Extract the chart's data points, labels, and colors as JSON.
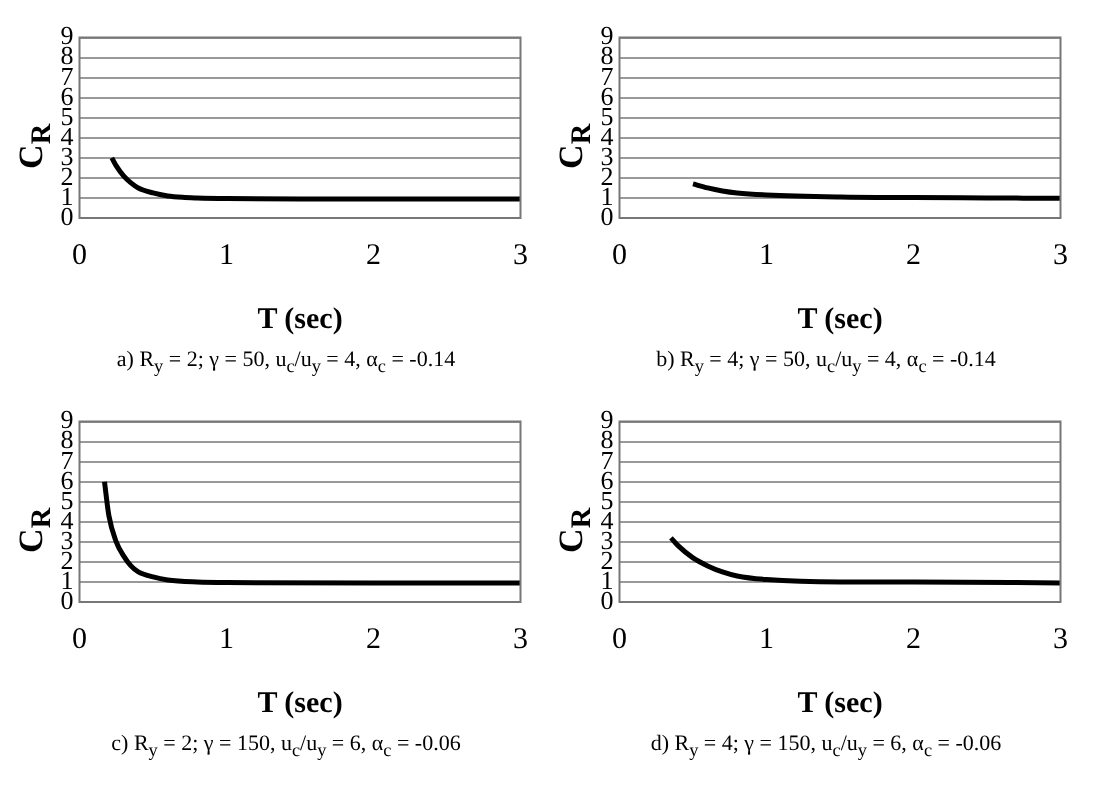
{
  "chart_data": [
    {
      "type": "line",
      "ylabel": "C$_{R}$",
      "xlabel": "T (sec)",
      "annotations": [
        "a) R$_{y}$ = 2; γ = 50, u$_{c}$/u$_{y}$ = 4, α$_{c}$ = -0.14"
      ],
      "x": [
        0.22,
        0.25,
        0.3,
        0.35,
        0.4,
        0.5,
        0.6,
        0.7,
        0.8,
        1,
        1.5,
        2,
        2.5,
        3
      ],
      "values": [
        3.0,
        2.6,
        2.1,
        1.75,
        1.5,
        1.25,
        1.1,
        1.03,
        1.0,
        0.97,
        0.95,
        0.95,
        0.95,
        0.95
      ],
      "color": "#000000",
      "xlim": [
        0,
        3
      ],
      "xticks": [
        0,
        1,
        2,
        3
      ],
      "ylim": [
        0,
        9
      ],
      "yticks": [
        0,
        1,
        2,
        3,
        4,
        5,
        6,
        7,
        8,
        9
      ],
      "grid": "y"
    },
    {
      "type": "line",
      "ylabel": "C$_{R}$",
      "xlabel": "T (sec)",
      "annotations": [
        "b) R$_{y}$ = 4; γ = 50, u$_{c}$/u$_{y}$ = 4, α$_{c}$ = -0.14"
      ],
      "x": [
        0.5,
        0.6,
        0.7,
        0.8,
        1,
        1.5,
        2,
        2.5,
        3
      ],
      "values": [
        1.7,
        1.5,
        1.35,
        1.25,
        1.15,
        1.05,
        1.02,
        1.0,
        0.98
      ],
      "color": "#000000",
      "xlim": [
        0,
        3
      ],
      "xticks": [
        0,
        1,
        2,
        3
      ],
      "ylim": [
        0,
        9
      ],
      "yticks": [
        0,
        1,
        2,
        3,
        4,
        5,
        6,
        7,
        8,
        9
      ],
      "grid": "y"
    },
    {
      "type": "line",
      "ylabel": "C$_{R}$",
      "xlabel": "T (sec)",
      "annotations": [
        "c) R$_{y}$ = 2; γ = 150, u$_{c}$/u$_{y}$ = 6, α$_{c}$ = -0.06"
      ],
      "x": [
        0.17,
        0.2,
        0.25,
        0.3,
        0.35,
        0.4,
        0.5,
        0.6,
        0.8,
        1,
        2,
        3
      ],
      "values": [
        6.0,
        4.3,
        3.0,
        2.3,
        1.8,
        1.5,
        1.25,
        1.1,
        1.0,
        0.97,
        0.95,
        0.95
      ],
      "color": "#000000",
      "xlim": [
        0,
        3
      ],
      "xticks": [
        0,
        1,
        2,
        3
      ],
      "ylim": [
        0,
        9
      ],
      "yticks": [
        0,
        1,
        2,
        3,
        4,
        5,
        6,
        7,
        8,
        9
      ],
      "grid": "y"
    },
    {
      "type": "line",
      "ylabel": "C$_{R}$",
      "xlabel": "T (sec)",
      "annotations": [
        "d) R$_{y}$ = 4; γ = 150, u$_{c}$/u$_{y}$ = 6, α$_{c}$ = -0.06"
      ],
      "x": [
        0.35,
        0.4,
        0.5,
        0.6,
        0.7,
        0.8,
        1,
        1.5,
        2,
        3
      ],
      "values": [
        3.2,
        2.8,
        2.2,
        1.8,
        1.5,
        1.3,
        1.12,
        1.0,
        1.0,
        0.95
      ],
      "color": "#000000",
      "xlim": [
        0,
        3
      ],
      "xticks": [
        0,
        1,
        2,
        3
      ],
      "ylim": [
        0,
        9
      ],
      "yticks": [
        0,
        1,
        2,
        3,
        4,
        5,
        6,
        7,
        8,
        9
      ],
      "grid": "y"
    }
  ]
}
